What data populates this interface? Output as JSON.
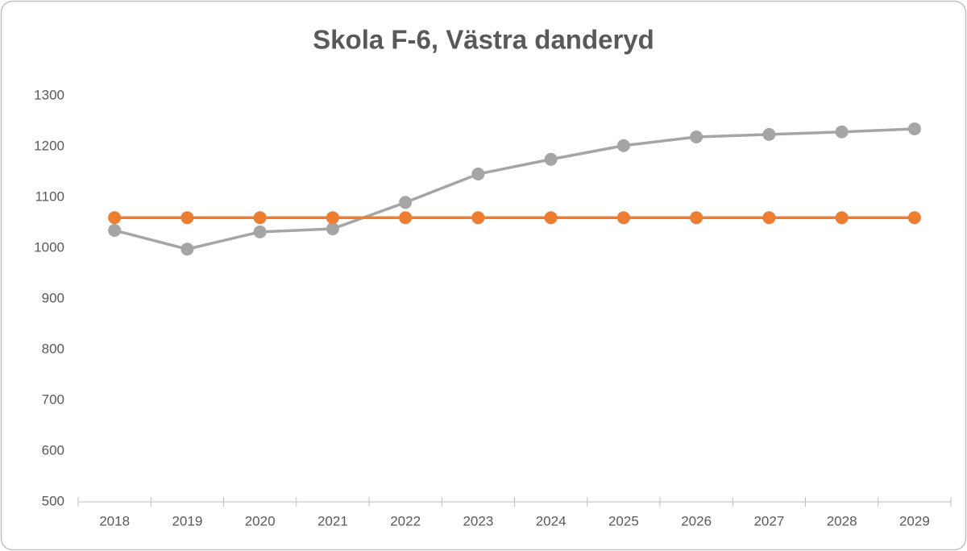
{
  "chart_data": {
    "type": "line",
    "title": "Skola F-6, Västra danderyd",
    "categories": [
      "2018",
      "2019",
      "2020",
      "2021",
      "2022",
      "2023",
      "2024",
      "2025",
      "2026",
      "2027",
      "2028",
      "2029"
    ],
    "series": [
      {
        "color": "#a5a5a5",
        "values": [
          1035,
          998,
          1032,
          1038,
          1090,
          1146,
          1175,
          1202,
          1219,
          1224,
          1229,
          1235
        ]
      },
      {
        "color": "#ed7d31",
        "values": [
          1060,
          1060,
          1060,
          1060,
          1060,
          1060,
          1060,
          1060,
          1060,
          1060,
          1060,
          1060
        ]
      }
    ],
    "ylim": [
      500,
      1300
    ],
    "yticks": [
      500,
      600,
      700,
      800,
      900,
      1000,
      1100,
      1200,
      1300
    ],
    "grid": false
  }
}
